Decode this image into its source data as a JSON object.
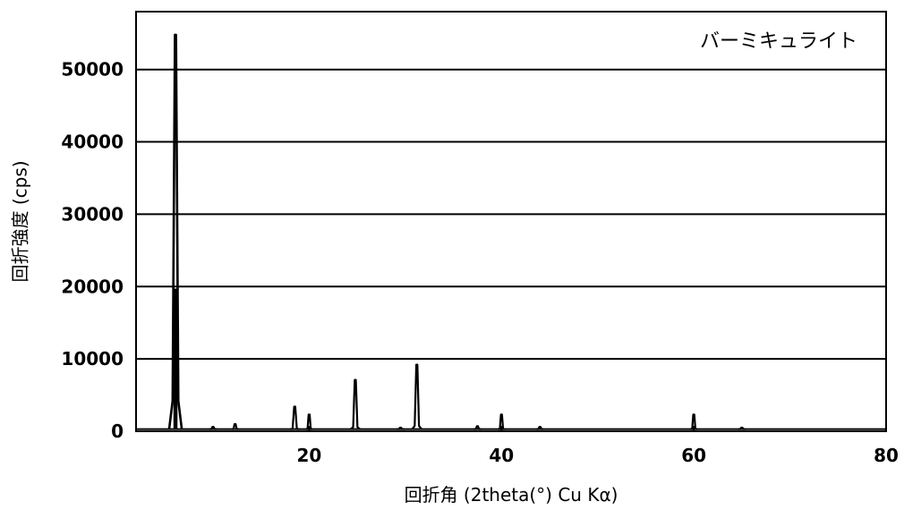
{
  "chart_data": {
    "type": "line",
    "title": "",
    "xlabel": "回折角 (2theta(°) Cu Kα)",
    "ylabel": "回折強度 (cps)",
    "xlim": [
      2,
      80
    ],
    "ylim": [
      0,
      58000
    ],
    "xticks": [
      20,
      40,
      60,
      80
    ],
    "xtick_labels": [
      "20",
      "40",
      "60",
      "80"
    ],
    "yticks": [
      0,
      10000,
      20000,
      30000,
      40000,
      50000
    ],
    "ytick_labels": [
      "0",
      "10000",
      "20000",
      "30000",
      "40000",
      "50000"
    ],
    "grid": "horizontal",
    "legend_position": "top-right",
    "series": [
      {
        "name": "バーミキュライト",
        "color": "#000000",
        "baseline": 300,
        "peaks": [
          {
            "x": 6.1,
            "y": 54800
          },
          {
            "x": 10.0,
            "y": 600
          },
          {
            "x": 12.3,
            "y": 1000
          },
          {
            "x": 18.5,
            "y": 3400
          },
          {
            "x": 20.0,
            "y": 2300
          },
          {
            "x": 24.8,
            "y": 7100
          },
          {
            "x": 29.5,
            "y": 500
          },
          {
            "x": 31.2,
            "y": 9200
          },
          {
            "x": 37.5,
            "y": 700
          },
          {
            "x": 40.0,
            "y": 2300
          },
          {
            "x": 44.0,
            "y": 600
          },
          {
            "x": 60.0,
            "y": 2300
          },
          {
            "x": 65.0,
            "y": 500
          }
        ]
      }
    ]
  }
}
